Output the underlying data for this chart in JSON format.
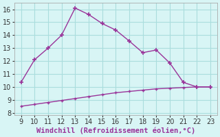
{
  "x_main": [
    9,
    10,
    11,
    12,
    13,
    14,
    15,
    16,
    17,
    18,
    19,
    20,
    21,
    22,
    23
  ],
  "y_main": [
    10.35,
    12.1,
    13.0,
    14.0,
    16.1,
    15.6,
    14.9,
    14.4,
    13.55,
    12.65,
    12.85,
    11.85,
    10.35,
    10.0,
    10.0
  ],
  "x_line2": [
    9,
    10,
    11,
    12,
    13,
    14,
    15,
    16,
    17,
    18,
    19,
    20,
    21,
    22,
    23
  ],
  "y_line2": [
    8.5,
    8.65,
    8.8,
    8.95,
    9.1,
    9.25,
    9.4,
    9.55,
    9.65,
    9.75,
    9.85,
    9.9,
    9.95,
    10.0,
    10.0
  ],
  "line_color": "#993399",
  "bg_color": "#d8f5f5",
  "grid_color": "#aadddd",
  "xlabel": "Windchill (Refroidissement éolien,°C)",
  "xlim": [
    8.5,
    23.5
  ],
  "ylim": [
    7.8,
    16.5
  ],
  "xticks": [
    9,
    10,
    11,
    12,
    13,
    14,
    15,
    16,
    17,
    18,
    19,
    20,
    21,
    22,
    23
  ],
  "yticks": [
    8,
    9,
    10,
    11,
    12,
    13,
    14,
    15,
    16
  ],
  "tick_fontsize": 7,
  "xlabel_fontsize": 7.5,
  "xlabel_color": "#993399"
}
